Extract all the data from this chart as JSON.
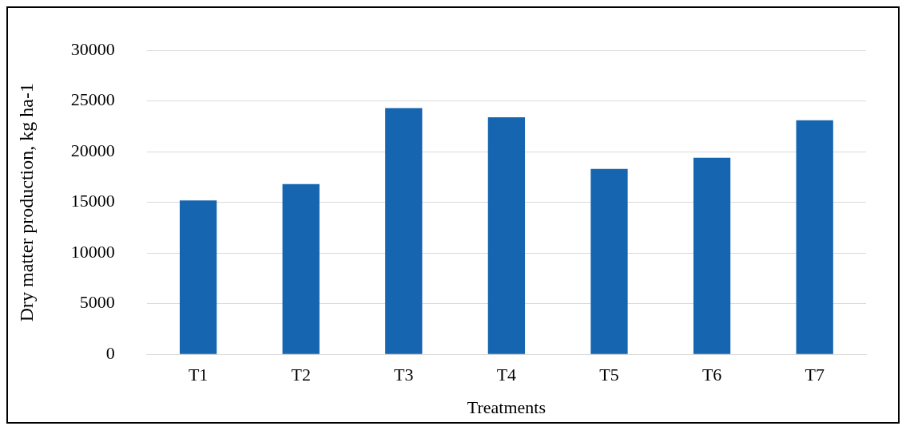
{
  "chart_data": {
    "type": "bar",
    "xlabel": "Treatments",
    "ylabel": "Dry matter production, kg ha-1",
    "categories": [
      "T1",
      "T2",
      "T3",
      "T4",
      "T5",
      "T6",
      "T7"
    ],
    "values": [
      15200,
      16800,
      24300,
      23400,
      18300,
      19400,
      23100
    ],
    "color": "#1565b0",
    "ylim": [
      0,
      30000
    ],
    "yticks": [
      0,
      5000,
      10000,
      15000,
      20000,
      25000,
      30000
    ],
    "grid": "y",
    "legend": false
  }
}
